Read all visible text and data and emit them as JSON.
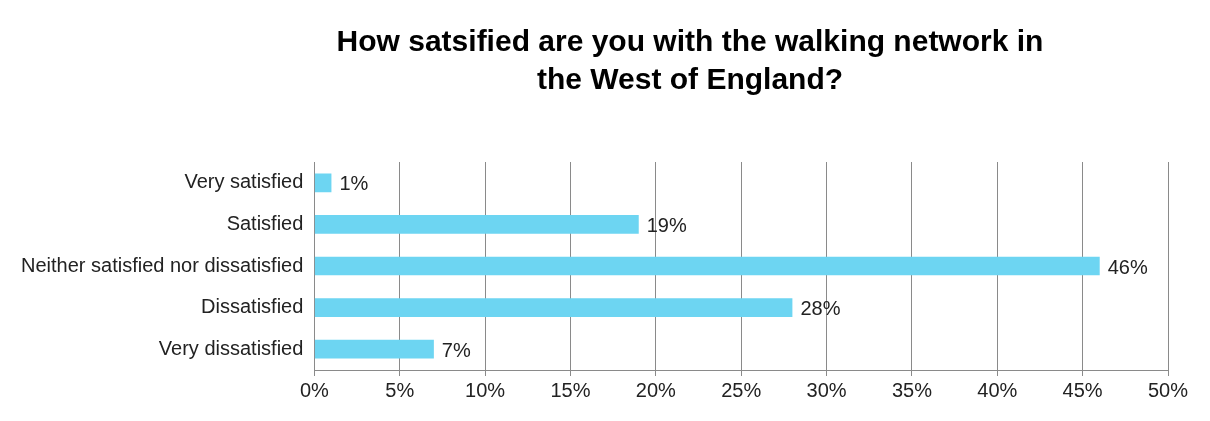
{
  "chart_data": {
    "type": "bar",
    "orientation": "horizontal",
    "title": "How satsified are you with the walking network in the West of England?",
    "categories": [
      "Very satisfied",
      "Satisfied",
      "Neither satisfied nor dissatisfied",
      "Dissatisfied",
      "Very dissatisfied"
    ],
    "values": [
      1,
      19,
      46,
      28,
      7
    ],
    "value_labels": [
      "1%",
      "19%",
      "46%",
      "28%",
      "7%"
    ],
    "color": "#6dd5f2",
    "xlim": [
      0,
      50
    ],
    "xticks": [
      {
        "value": 0,
        "label": "0%"
      },
      {
        "value": 5,
        "label": "5%"
      },
      {
        "value": 10,
        "label": "10%"
      },
      {
        "value": 15,
        "label": "15%"
      },
      {
        "value": 20,
        "label": "20%"
      },
      {
        "value": 25,
        "label": "25%"
      },
      {
        "value": 30,
        "label": "30%"
      },
      {
        "value": 35,
        "label": "35%"
      },
      {
        "value": 40,
        "label": "40%"
      },
      {
        "value": 45,
        "label": "45%"
      },
      {
        "value": 50,
        "label": "50%"
      }
    ],
    "grid": "x",
    "legend": false
  }
}
